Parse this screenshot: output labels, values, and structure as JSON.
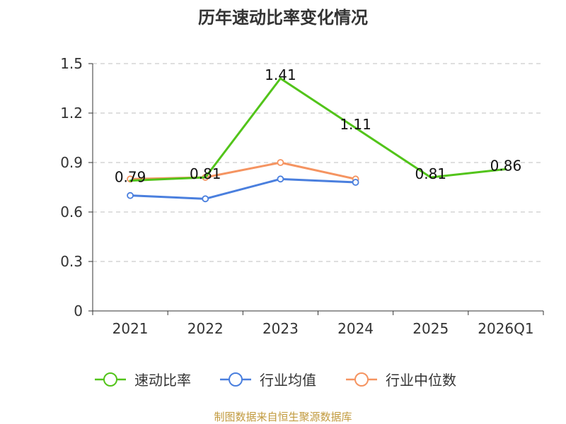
{
  "chart_data": {
    "type": "line",
    "title": "历年速动比率变化情况",
    "xlabel": "",
    "ylabel": "",
    "categories": [
      "2021",
      "2022",
      "2023",
      "2024",
      "2025",
      "2026Q1"
    ],
    "y_ticks": [
      "0",
      "0.3",
      "0.6",
      "0.9",
      "1.2",
      "1.5"
    ],
    "ylim": [
      0,
      1.5
    ],
    "grid": true,
    "grid_style": "dashed horizontal",
    "legend_position": "bottom",
    "series": [
      {
        "name": "速动比率",
        "color": "#52c41a",
        "values": [
          0.79,
          0.81,
          1.41,
          1.11,
          0.81,
          0.86
        ],
        "labels": [
          "0.79",
          "0.81",
          "1.41",
          "1.11",
          "0.81",
          "0.86"
        ],
        "show_markers": false
      },
      {
        "name": "行业均值",
        "color": "#4a7fde",
        "values": [
          0.7,
          0.68,
          0.8,
          0.78,
          null,
          null
        ],
        "show_markers": true
      },
      {
        "name": "行业中位数",
        "color": "#f59461",
        "values": [
          0.8,
          0.81,
          0.9,
          0.8,
          null,
          null
        ],
        "show_markers": true
      }
    ],
    "source": "制图数据来自恒生聚源数据库"
  }
}
